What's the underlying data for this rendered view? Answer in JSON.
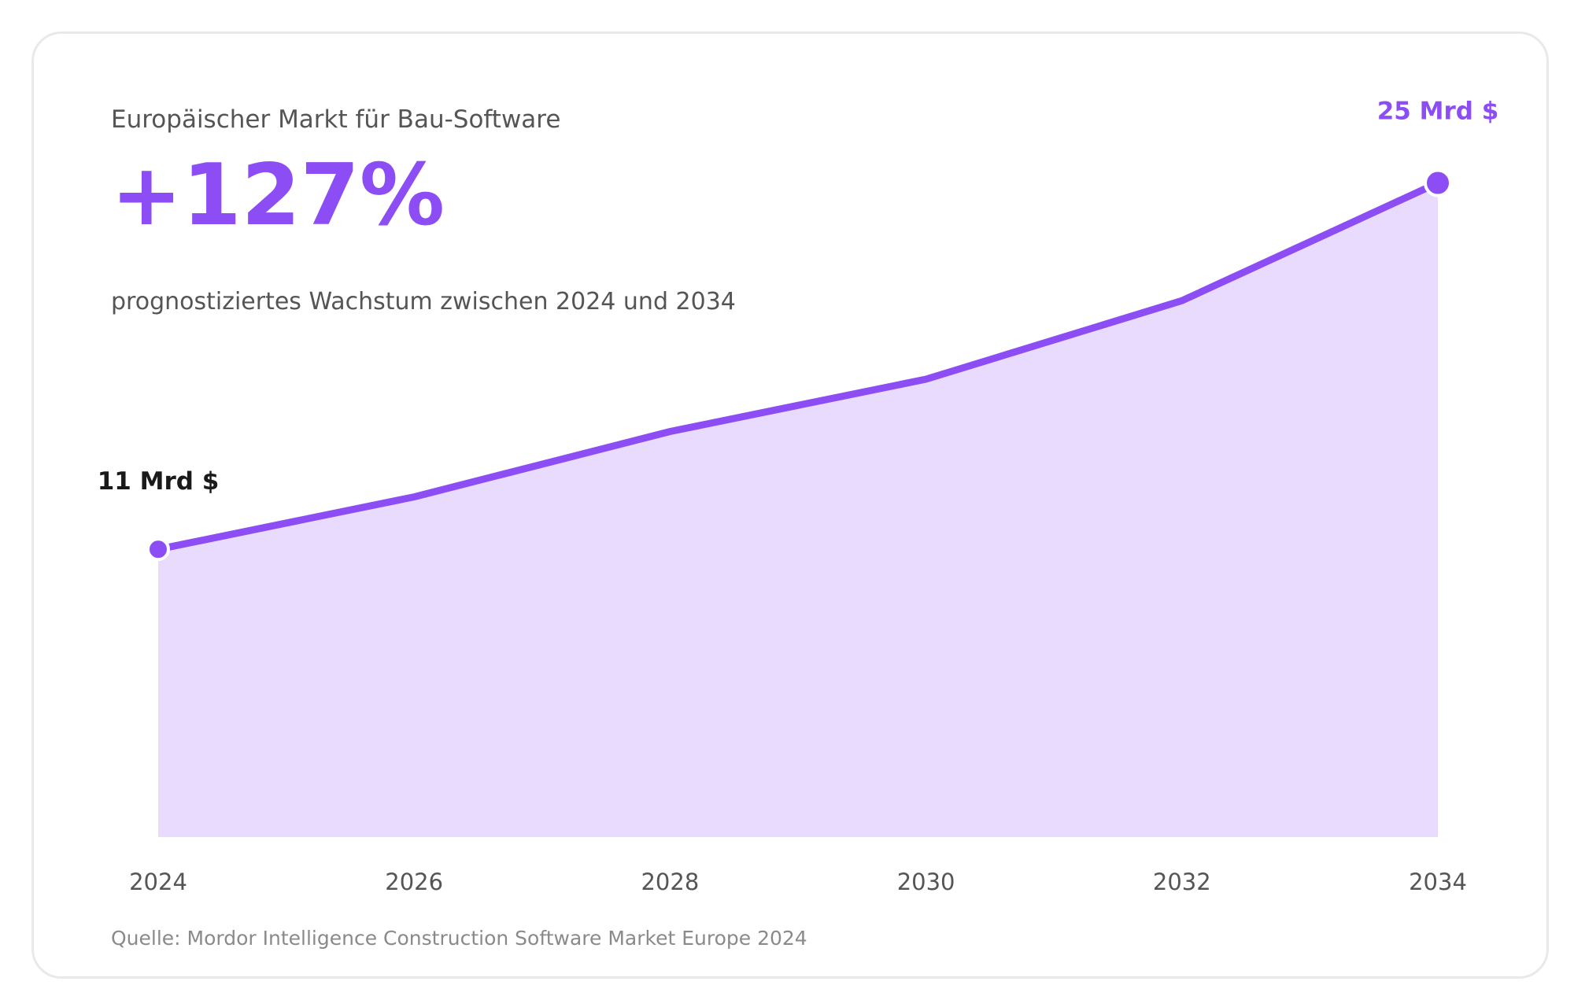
{
  "header": {
    "subtitle": "Europäischer Markt für Bau-Software",
    "headline": "+127%",
    "description": "prognostiziertes Wachstum zwischen 2024 und 2034"
  },
  "footer": {
    "source": "Quelle: Mordor Intelligence Construction Software Market Europe 2024"
  },
  "colors": {
    "accent": "#8c4ef4",
    "area_fill": "#e9dbfe",
    "start_label": "#1a1a1a"
  },
  "chart_data": {
    "type": "area",
    "x": [
      2024,
      2026,
      2028,
      2030,
      2032,
      2034
    ],
    "values": [
      11,
      13,
      15.5,
      17.5,
      20.5,
      25
    ],
    "ylim": [
      0,
      31
    ],
    "grid": false,
    "legend": "none",
    "annotations": [
      {
        "x": 2024,
        "value": 11,
        "label": "11 Mrd $"
      },
      {
        "x": 2034,
        "value": 25,
        "label": "25 Mrd $"
      }
    ]
  }
}
